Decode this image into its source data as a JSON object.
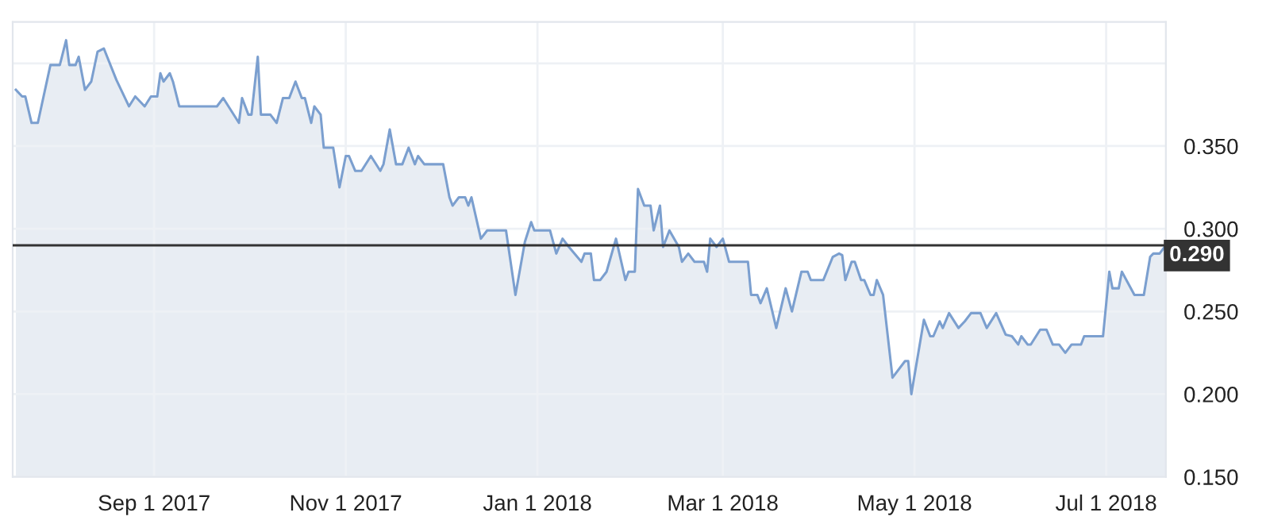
{
  "chart_data": {
    "type": "area",
    "xlim": [
      "2017-07-18",
      "2018-07-20"
    ],
    "xticks": [
      {
        "value": "2017-09-01",
        "label": "Sep 1 2017"
      },
      {
        "value": "2017-11-01",
        "label": "Nov 1 2017"
      },
      {
        "value": "2018-01-01",
        "label": "Jan 1 2018"
      },
      {
        "value": "2018-03-01",
        "label": "Mar 1 2018"
      },
      {
        "value": "2018-05-01",
        "label": "May 1 2018"
      },
      {
        "value": "2018-07-01",
        "label": "Jul 1 2018"
      }
    ],
    "ylim": [
      0.15,
      0.425
    ],
    "yticks": [
      {
        "value": 0.15,
        "label": "0.150"
      },
      {
        "value": 0.2,
        "label": "0.200"
      },
      {
        "value": 0.25,
        "label": "0.250"
      },
      {
        "value": 0.3,
        "label": "0.300"
      },
      {
        "value": 0.35,
        "label": "0.350"
      },
      {
        "value": 0.4,
        "label": null
      }
    ],
    "grid": true,
    "legend": false,
    "ref_lines": [
      {
        "axis": "y",
        "value": 0.29,
        "label": "0.290",
        "color": "#333333"
      }
    ],
    "series": [
      {
        "color": "#7b9fcf",
        "x": [
          "2017-07-19",
          "2017-07-21",
          "2017-07-22",
          "2017-07-24",
          "2017-07-26",
          "2017-07-30",
          "2017-08-02",
          "2017-08-04",
          "2017-08-05",
          "2017-08-07",
          "2017-08-08",
          "2017-08-10",
          "2017-08-12",
          "2017-08-14",
          "2017-08-16",
          "2017-08-20",
          "2017-08-24",
          "2017-08-26",
          "2017-08-29",
          "2017-08-31",
          "2017-09-02",
          "2017-09-03",
          "2017-09-04",
          "2017-09-06",
          "2017-09-07",
          "2017-09-09",
          "2017-09-21",
          "2017-09-23",
          "2017-09-28",
          "2017-09-29",
          "2017-10-01",
          "2017-10-02",
          "2017-10-04",
          "2017-10-05",
          "2017-10-08",
          "2017-10-10",
          "2017-10-12",
          "2017-10-14",
          "2017-10-16",
          "2017-10-18",
          "2017-10-19",
          "2017-10-21",
          "2017-10-22",
          "2017-10-24",
          "2017-10-25",
          "2017-10-28",
          "2017-10-30",
          "2017-11-01",
          "2017-11-02",
          "2017-11-04",
          "2017-11-06",
          "2017-11-09",
          "2017-11-12",
          "2017-11-13",
          "2017-11-15",
          "2017-11-17",
          "2017-11-19",
          "2017-11-21",
          "2017-11-23",
          "2017-11-24",
          "2017-11-26",
          "2017-12-02",
          "2017-12-04",
          "2017-12-05",
          "2017-12-07",
          "2017-12-09",
          "2017-12-10",
          "2017-12-11",
          "2017-12-14",
          "2017-12-16",
          "2017-12-22",
          "2017-12-25",
          "2017-12-28",
          "2017-12-30",
          "2017-12-31",
          "2018-01-05",
          "2018-01-07",
          "2018-01-09",
          "2018-01-11",
          "2018-01-15",
          "2018-01-16",
          "2018-01-18",
          "2018-01-19",
          "2018-01-21",
          "2018-01-23",
          "2018-01-26",
          "2018-01-29",
          "2018-01-30",
          "2018-02-01",
          "2018-02-02",
          "2018-02-04",
          "2018-02-06",
          "2018-02-07",
          "2018-02-09",
          "2018-02-10",
          "2018-02-12",
          "2018-02-15",
          "2018-02-16",
          "2018-02-18",
          "2018-02-20",
          "2018-02-23",
          "2018-02-24",
          "2018-02-25",
          "2018-02-27",
          "2018-03-01",
          "2018-03-03",
          "2018-03-09",
          "2018-03-10",
          "2018-03-12",
          "2018-03-13",
          "2018-03-15",
          "2018-03-18",
          "2018-03-21",
          "2018-03-23",
          "2018-03-26",
          "2018-03-28",
          "2018-03-29",
          "2018-04-02",
          "2018-04-05",
          "2018-04-07",
          "2018-04-08",
          "2018-04-09",
          "2018-04-11",
          "2018-04-12",
          "2018-04-14",
          "2018-04-15",
          "2018-04-17",
          "2018-04-18",
          "2018-04-19",
          "2018-04-21",
          "2018-04-24",
          "2018-04-28",
          "2018-04-29",
          "2018-04-30",
          "2018-05-04",
          "2018-05-06",
          "2018-05-07",
          "2018-05-09",
          "2018-05-10",
          "2018-05-12",
          "2018-05-15",
          "2018-05-17",
          "2018-05-19",
          "2018-05-22",
          "2018-05-24",
          "2018-05-27",
          "2018-05-30",
          "2018-06-01",
          "2018-06-03",
          "2018-06-04",
          "2018-06-06",
          "2018-06-07",
          "2018-06-10",
          "2018-06-12",
          "2018-06-14",
          "2018-06-16",
          "2018-06-18",
          "2018-06-20",
          "2018-06-23",
          "2018-06-24",
          "2018-06-30",
          "2018-07-02",
          "2018-07-03",
          "2018-07-05",
          "2018-07-06",
          "2018-07-10",
          "2018-07-13",
          "2018-07-15",
          "2018-07-16",
          "2018-07-18",
          "2018-07-20"
        ],
        "values": [
          0.384,
          0.38,
          0.38,
          0.364,
          0.364,
          0.399,
          0.399,
          0.414,
          0.399,
          0.399,
          0.404,
          0.384,
          0.389,
          0.407,
          0.409,
          0.39,
          0.374,
          0.38,
          0.374,
          0.38,
          0.38,
          0.394,
          0.389,
          0.394,
          0.389,
          0.374,
          0.374,
          0.379,
          0.364,
          0.379,
          0.369,
          0.369,
          0.404,
          0.369,
          0.369,
          0.364,
          0.379,
          0.379,
          0.389,
          0.379,
          0.379,
          0.364,
          0.374,
          0.369,
          0.349,
          0.349,
          0.325,
          0.344,
          0.344,
          0.335,
          0.335,
          0.344,
          0.335,
          0.339,
          0.36,
          0.339,
          0.339,
          0.349,
          0.339,
          0.344,
          0.339,
          0.339,
          0.319,
          0.314,
          0.319,
          0.319,
          0.314,
          0.319,
          0.294,
          0.299,
          0.299,
          0.26,
          0.292,
          0.304,
          0.299,
          0.299,
          0.285,
          0.294,
          0.289,
          0.28,
          0.285,
          0.285,
          0.269,
          0.269,
          0.274,
          0.294,
          0.269,
          0.274,
          0.274,
          0.324,
          0.314,
          0.314,
          0.299,
          0.314,
          0.289,
          0.299,
          0.289,
          0.28,
          0.285,
          0.28,
          0.28,
          0.274,
          0.294,
          0.289,
          0.294,
          0.28,
          0.28,
          0.26,
          0.26,
          0.255,
          0.264,
          0.24,
          0.264,
          0.25,
          0.274,
          0.274,
          0.269,
          0.269,
          0.283,
          0.285,
          0.284,
          0.269,
          0.28,
          0.28,
          0.269,
          0.269,
          0.26,
          0.26,
          0.269,
          0.26,
          0.21,
          0.22,
          0.22,
          0.2,
          0.245,
          0.235,
          0.235,
          0.244,
          0.24,
          0.249,
          0.24,
          0.244,
          0.249,
          0.249,
          0.24,
          0.249,
          0.236,
          0.235,
          0.23,
          0.235,
          0.23,
          0.23,
          0.239,
          0.239,
          0.23,
          0.23,
          0.225,
          0.23,
          0.23,
          0.235,
          0.235,
          0.274,
          0.264,
          0.264,
          0.274,
          0.26,
          0.26,
          0.283,
          0.285,
          0.285,
          0.29
        ]
      }
    ]
  }
}
